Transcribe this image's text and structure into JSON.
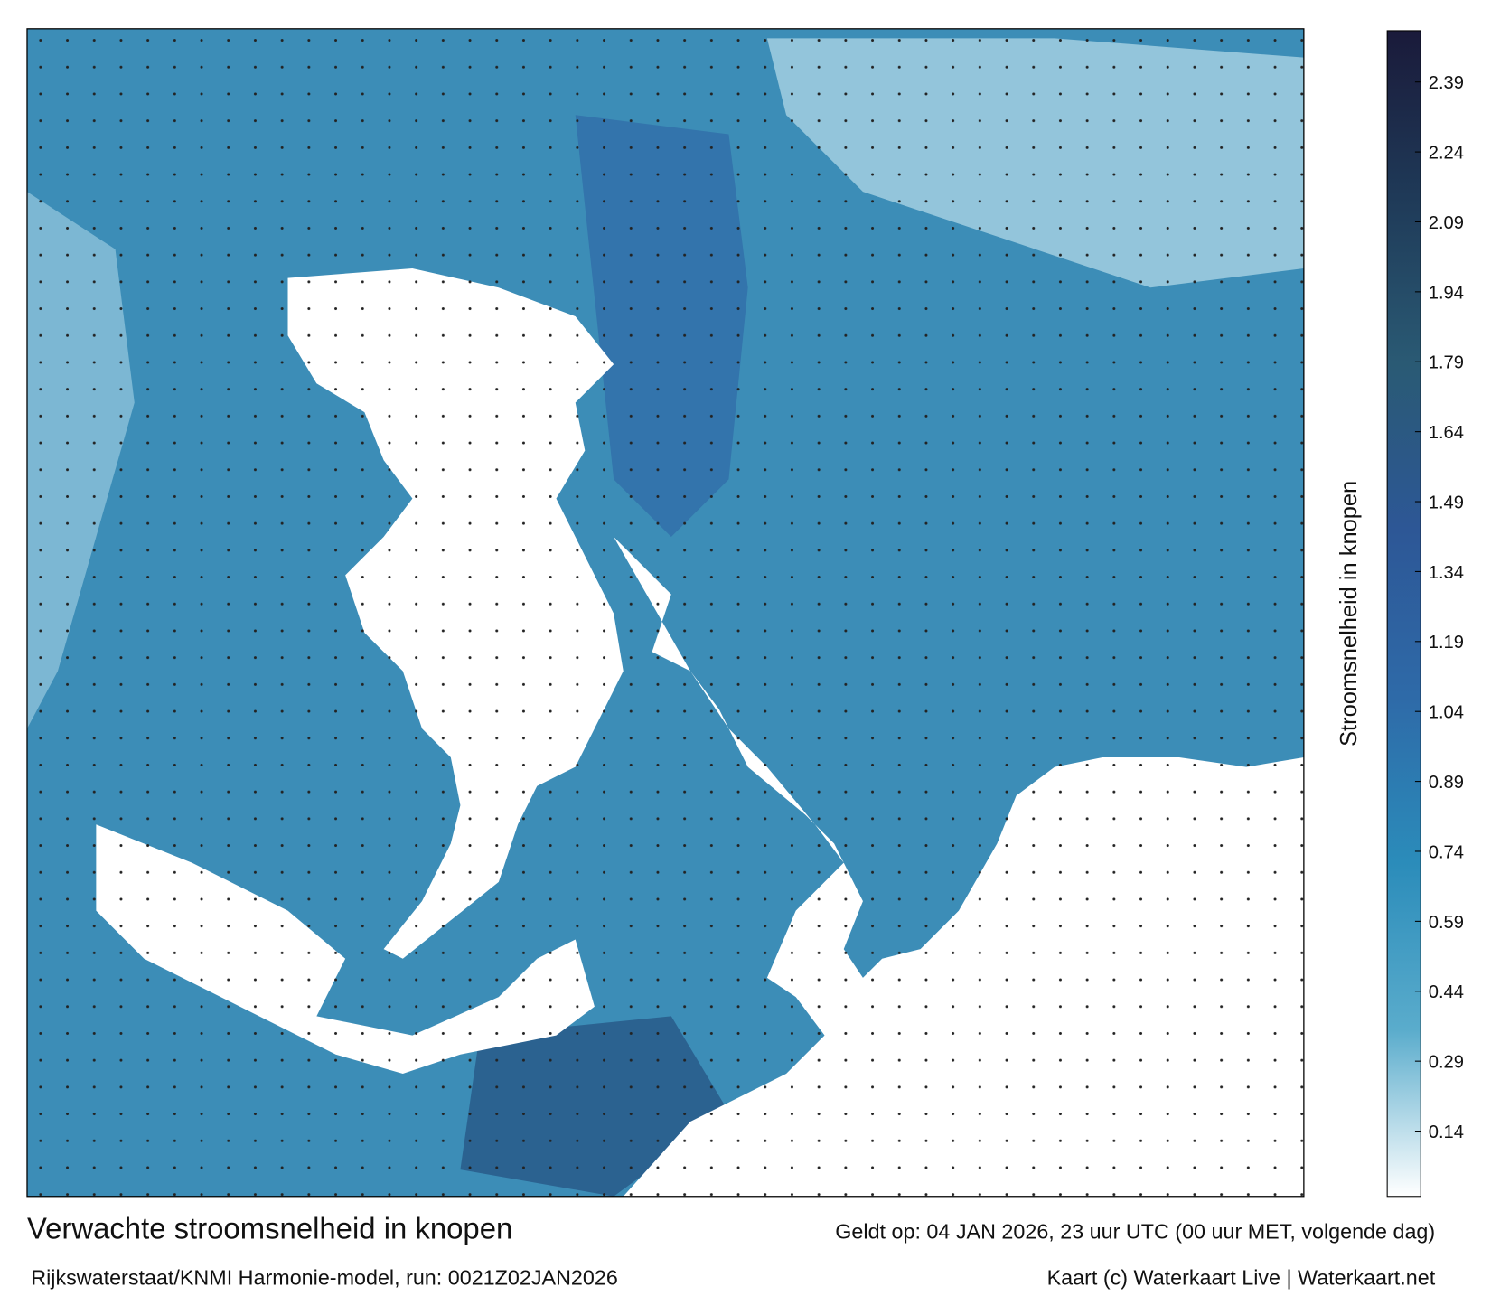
{
  "header": {
    "title": "Verwachte stroomsnelheid in knopen",
    "valid": "Geldt op: 04 JAN 2026, 23 uur UTC (00 uur MET, volgende dag)"
  },
  "footer": {
    "source": "Rijkswaterstaat/KNMI Harmonie-model, run: 0021Z02JAN2026",
    "credit": "Kaart (c) Waterkaart Live | Waterkaart.net"
  },
  "colorbar": {
    "label": "Stroomsnelheid in knopen",
    "lim": [
      0,
      2.5
    ],
    "ticks": [
      0.14,
      0.29,
      0.44,
      0.59,
      0.74,
      0.89,
      1.04,
      1.19,
      1.34,
      1.49,
      1.64,
      1.79,
      1.94,
      2.09,
      2.24,
      2.39
    ],
    "colors": [
      "#ffffff",
      "#5aaccc",
      "#2b8cba",
      "#2e6aa8",
      "#2d5796",
      "#2a5a74",
      "#1f3a58",
      "#1a1a3a"
    ]
  }
}
